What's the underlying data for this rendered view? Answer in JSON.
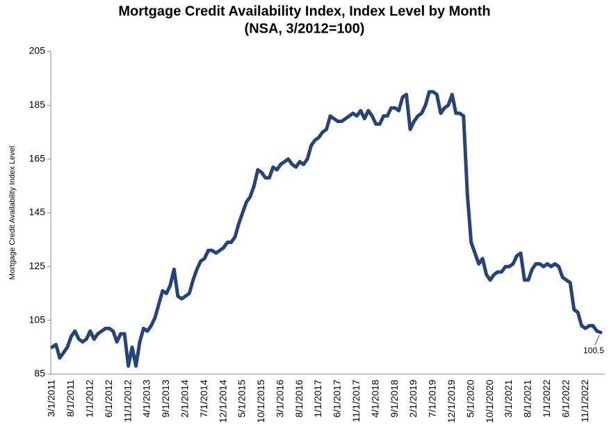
{
  "chart_data": {
    "type": "line",
    "title": "Mortgage Credit Availability Index, Index Level by Month",
    "subtitle": "(NSA, 3/2012=100)",
    "y_label": "Mortgage Credit Availability Index Level",
    "categories": [
      "3/1/2011",
      null,
      null,
      null,
      null,
      "8/1/2011",
      null,
      null,
      null,
      null,
      "1/1/2012",
      null,
      null,
      null,
      null,
      "6/1/2012",
      null,
      null,
      null,
      null,
      "11/1/2012",
      null,
      null,
      null,
      null,
      "4/1/2013",
      null,
      null,
      null,
      null,
      "9/1/2013",
      null,
      null,
      null,
      null,
      "2/1/2014",
      null,
      null,
      null,
      null,
      "7/1/2014",
      null,
      null,
      null,
      null,
      "12/1/2014",
      null,
      null,
      null,
      null,
      "5/1/2015",
      null,
      null,
      null,
      null,
      "10/1/2015",
      null,
      null,
      null,
      null,
      "3/1/2016",
      null,
      null,
      null,
      null,
      "8/1/2016",
      null,
      null,
      null,
      null,
      "1/1/2017",
      null,
      null,
      null,
      null,
      "6/1/2017",
      null,
      null,
      null,
      null,
      "11/1/2017",
      null,
      null,
      null,
      null,
      "4/1/2018",
      null,
      null,
      null,
      null,
      "9/1/2018",
      null,
      null,
      null,
      null,
      "2/1/2019",
      null,
      null,
      null,
      null,
      "7/1/2019",
      null,
      null,
      null,
      null,
      "12/1/2019",
      null,
      null,
      null,
      null,
      "5/1/2020",
      null,
      null,
      null,
      null,
      "10/1/2020",
      null,
      null,
      null,
      null,
      "3/1/2021",
      null,
      null,
      null,
      null,
      "8/1/2021",
      null,
      null,
      null,
      null,
      "1/1/2022",
      null,
      null,
      null,
      null,
      "6/1/2022",
      null,
      null,
      null,
      null,
      "11/1/2022",
      null,
      null,
      null,
      null
    ],
    "series": [
      {
        "name": "Mortgage Credit Availability Index",
        "color": "#264478",
        "values": [
          95,
          96,
          91,
          93,
          95,
          99,
          101,
          98,
          97,
          98,
          101,
          98,
          100,
          101,
          102,
          102,
          101,
          97,
          100,
          100,
          88,
          95,
          88,
          97,
          102,
          101,
          103,
          106,
          111,
          116,
          115,
          118,
          124,
          114,
          113,
          114,
          115,
          120,
          124,
          127,
          128,
          131,
          131,
          130,
          131,
          132,
          134,
          134,
          136,
          141,
          145,
          149,
          151,
          155,
          161,
          160,
          158,
          158,
          162,
          161,
          163,
          164,
          165,
          163,
          162,
          164,
          163,
          165,
          170,
          172,
          173,
          175,
          176,
          181,
          180,
          179,
          179,
          180,
          181,
          182,
          181,
          183,
          180,
          183,
          181,
          178,
          178,
          181,
          181,
          184,
          184,
          183,
          188,
          189,
          176,
          179,
          181,
          182,
          185,
          190,
          190,
          189,
          182,
          184,
          185,
          189,
          182,
          182,
          181,
          152,
          134,
          130,
          126,
          128,
          122,
          120,
          122,
          123,
          123,
          125,
          125,
          126,
          129,
          130,
          120,
          120,
          124,
          126,
          126,
          125,
          126,
          125,
          126,
          125,
          121,
          120,
          119,
          109,
          108,
          103,
          102,
          103,
          103,
          101,
          100.5
        ]
      }
    ],
    "ylim": [
      85,
      205
    ],
    "yticks": [
      85,
      105,
      125,
      145,
      165,
      185,
      205
    ],
    "grid": false
  }
}
